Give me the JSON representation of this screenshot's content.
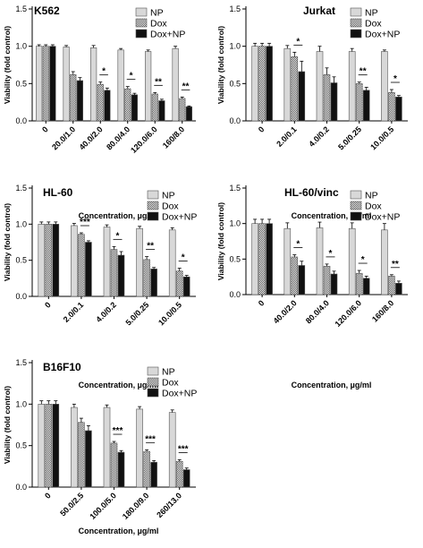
{
  "figure": {
    "bar_colors": {
      "NP": "#d8d8d8",
      "Dox": "#9a9a9a",
      "Dox+NP": "#111111"
    },
    "legend_labels": [
      "NP",
      "Dox",
      "Dox+NP"
    ],
    "ylabel": "Viability (fold control)",
    "xlabel": "Concentration, µg/ml",
    "yticks": [
      "0.0",
      "0.5",
      "1.0",
      "1.5"
    ]
  },
  "chart_data": [
    {
      "type": "bar",
      "title": "K562",
      "xlabel": "Concentration, µg/ml",
      "ylabel": "Viability (fold control)",
      "ylim": [
        0,
        1.5
      ],
      "legend": "top-right",
      "categories": [
        "0",
        "20.0/1.0",
        "40.0/2.0",
        "80.0/4.0",
        "120.0/6.0",
        "160/8.0"
      ],
      "series": [
        {
          "name": "NP",
          "values": [
            1.0,
            0.99,
            0.98,
            0.95,
            0.93,
            0.97
          ],
          "errors": [
            0.02,
            0.02,
            0.03,
            0.02,
            0.02,
            0.03
          ]
        },
        {
          "name": "Dox",
          "values": [
            1.0,
            0.62,
            0.49,
            0.43,
            0.36,
            0.3
          ],
          "errors": [
            0.02,
            0.04,
            0.03,
            0.03,
            0.02,
            0.02
          ]
        },
        {
          "name": "Dox+NP",
          "values": [
            1.0,
            0.54,
            0.41,
            0.35,
            0.27,
            0.19
          ],
          "errors": [
            0.02,
            0.04,
            0.03,
            0.02,
            0.02,
            0.01
          ]
        }
      ],
      "annotations": [
        {
          "category": "40.0/2.0",
          "text": "*"
        },
        {
          "category": "80.0/4.0",
          "text": "*"
        },
        {
          "category": "120.0/6.0",
          "text": "**"
        },
        {
          "category": "160/8.0",
          "text": "**"
        }
      ]
    },
    {
      "type": "bar",
      "title": "Jurkat",
      "xlabel": "Concentration, µg/ml",
      "ylabel": "Viability (fold control)",
      "ylim": [
        0,
        1.5
      ],
      "legend": "top-right",
      "categories": [
        "0",
        "2.0/0.1",
        "4.0/0.2",
        "5.0/0.25",
        "10.0/0.5"
      ],
      "series": [
        {
          "name": "NP",
          "values": [
            1.0,
            0.97,
            0.93,
            0.93,
            0.93
          ],
          "errors": [
            0.04,
            0.04,
            0.07,
            0.04,
            0.02
          ]
        },
        {
          "name": "Dox",
          "values": [
            1.0,
            0.86,
            0.62,
            0.5,
            0.38
          ],
          "errors": [
            0.04,
            0.06,
            0.09,
            0.02,
            0.04
          ]
        },
        {
          "name": "Dox+NP",
          "values": [
            1.0,
            0.66,
            0.51,
            0.41,
            0.32
          ],
          "errors": [
            0.04,
            0.14,
            0.08,
            0.04,
            0.02
          ]
        }
      ],
      "annotations": [
        {
          "category": "2.0/0.1",
          "text": "*"
        },
        {
          "category": "5.0/0.25",
          "text": "**"
        },
        {
          "category": "10.0/0.5",
          "text": "*"
        }
      ]
    },
    {
      "type": "bar",
      "title": "HL-60",
      "xlabel": "Concentration, µg/ml",
      "ylabel": "Viability (fold control)",
      "ylim": [
        0,
        1.5
      ],
      "legend": "top-right",
      "categories": [
        "0",
        "2.0/0.1",
        "4.0/0.2",
        "5.0/0.25",
        "10.0/0.5"
      ],
      "series": [
        {
          "name": "NP",
          "values": [
            1.0,
            0.98,
            0.96,
            0.94,
            0.92
          ],
          "errors": [
            0.03,
            0.03,
            0.03,
            0.03,
            0.03
          ]
        },
        {
          "name": "Dox",
          "values": [
            1.0,
            0.86,
            0.65,
            0.51,
            0.35
          ],
          "errors": [
            0.03,
            0.02,
            0.04,
            0.04,
            0.04
          ]
        },
        {
          "name": "Dox+NP",
          "values": [
            1.0,
            0.75,
            0.57,
            0.38,
            0.27
          ],
          "errors": [
            0.03,
            0.02,
            0.05,
            0.02,
            0.02
          ]
        }
      ],
      "annotations": [
        {
          "category": "2.0/0.1",
          "text": "***"
        },
        {
          "category": "4.0/0.2",
          "text": "*"
        },
        {
          "category": "5.0/0.25",
          "text": "**"
        },
        {
          "category": "10.0/0.5",
          "text": "*"
        }
      ]
    },
    {
      "type": "bar",
      "title": "HL-60/vinc",
      "xlabel": "Concentration, µg/ml",
      "ylabel": "Viability (fold control)",
      "ylim": [
        0,
        1.5
      ],
      "legend": "top-right",
      "categories": [
        "0",
        "40.0/2.0",
        "80.0/4.0",
        "120.0/6.0",
        "160/8.0"
      ],
      "series": [
        {
          "name": "NP",
          "values": [
            1.0,
            0.93,
            0.94,
            0.93,
            0.91
          ],
          "errors": [
            0.06,
            0.08,
            0.08,
            0.08,
            0.09
          ]
        },
        {
          "name": "Dox",
          "values": [
            1.0,
            0.53,
            0.4,
            0.3,
            0.26
          ],
          "errors": [
            0.06,
            0.03,
            0.03,
            0.04,
            0.02
          ]
        },
        {
          "name": "Dox+NP",
          "values": [
            1.0,
            0.41,
            0.29,
            0.23,
            0.16
          ],
          "errors": [
            0.06,
            0.06,
            0.04,
            0.03,
            0.03
          ]
        }
      ],
      "annotations": [
        {
          "category": "40.0/2.0",
          "text": "*"
        },
        {
          "category": "80.0/4.0",
          "text": "*"
        },
        {
          "category": "120.0/6.0",
          "text": "*"
        },
        {
          "category": "160/8.0",
          "text": "**"
        }
      ]
    },
    {
      "type": "bar",
      "title": "B16F10",
      "xlabel": "Concentration, µg/ml",
      "ylabel": "Viability (fold control)",
      "ylim": [
        0,
        1.5
      ],
      "legend": "top-right",
      "categories": [
        "0",
        "50.0/2.5",
        "100.0/5.0",
        "180.0/9.0",
        "260/13.0"
      ],
      "series": [
        {
          "name": "NP",
          "values": [
            1.0,
            0.96,
            0.96,
            0.94,
            0.9
          ],
          "errors": [
            0.04,
            0.04,
            0.03,
            0.03,
            0.03
          ]
        },
        {
          "name": "Dox",
          "values": [
            1.0,
            0.78,
            0.53,
            0.43,
            0.31
          ],
          "errors": [
            0.04,
            0.05,
            0.02,
            0.02,
            0.02
          ]
        },
        {
          "name": "Dox+NP",
          "values": [
            1.0,
            0.68,
            0.42,
            0.3,
            0.21
          ],
          "errors": [
            0.04,
            0.06,
            0.02,
            0.02,
            0.02
          ]
        }
      ],
      "annotations": [
        {
          "category": "100.0/5.0",
          "text": "***"
        },
        {
          "category": "180.0/9.0",
          "text": "***"
        },
        {
          "category": "260/13.0",
          "text": "***"
        }
      ]
    }
  ]
}
